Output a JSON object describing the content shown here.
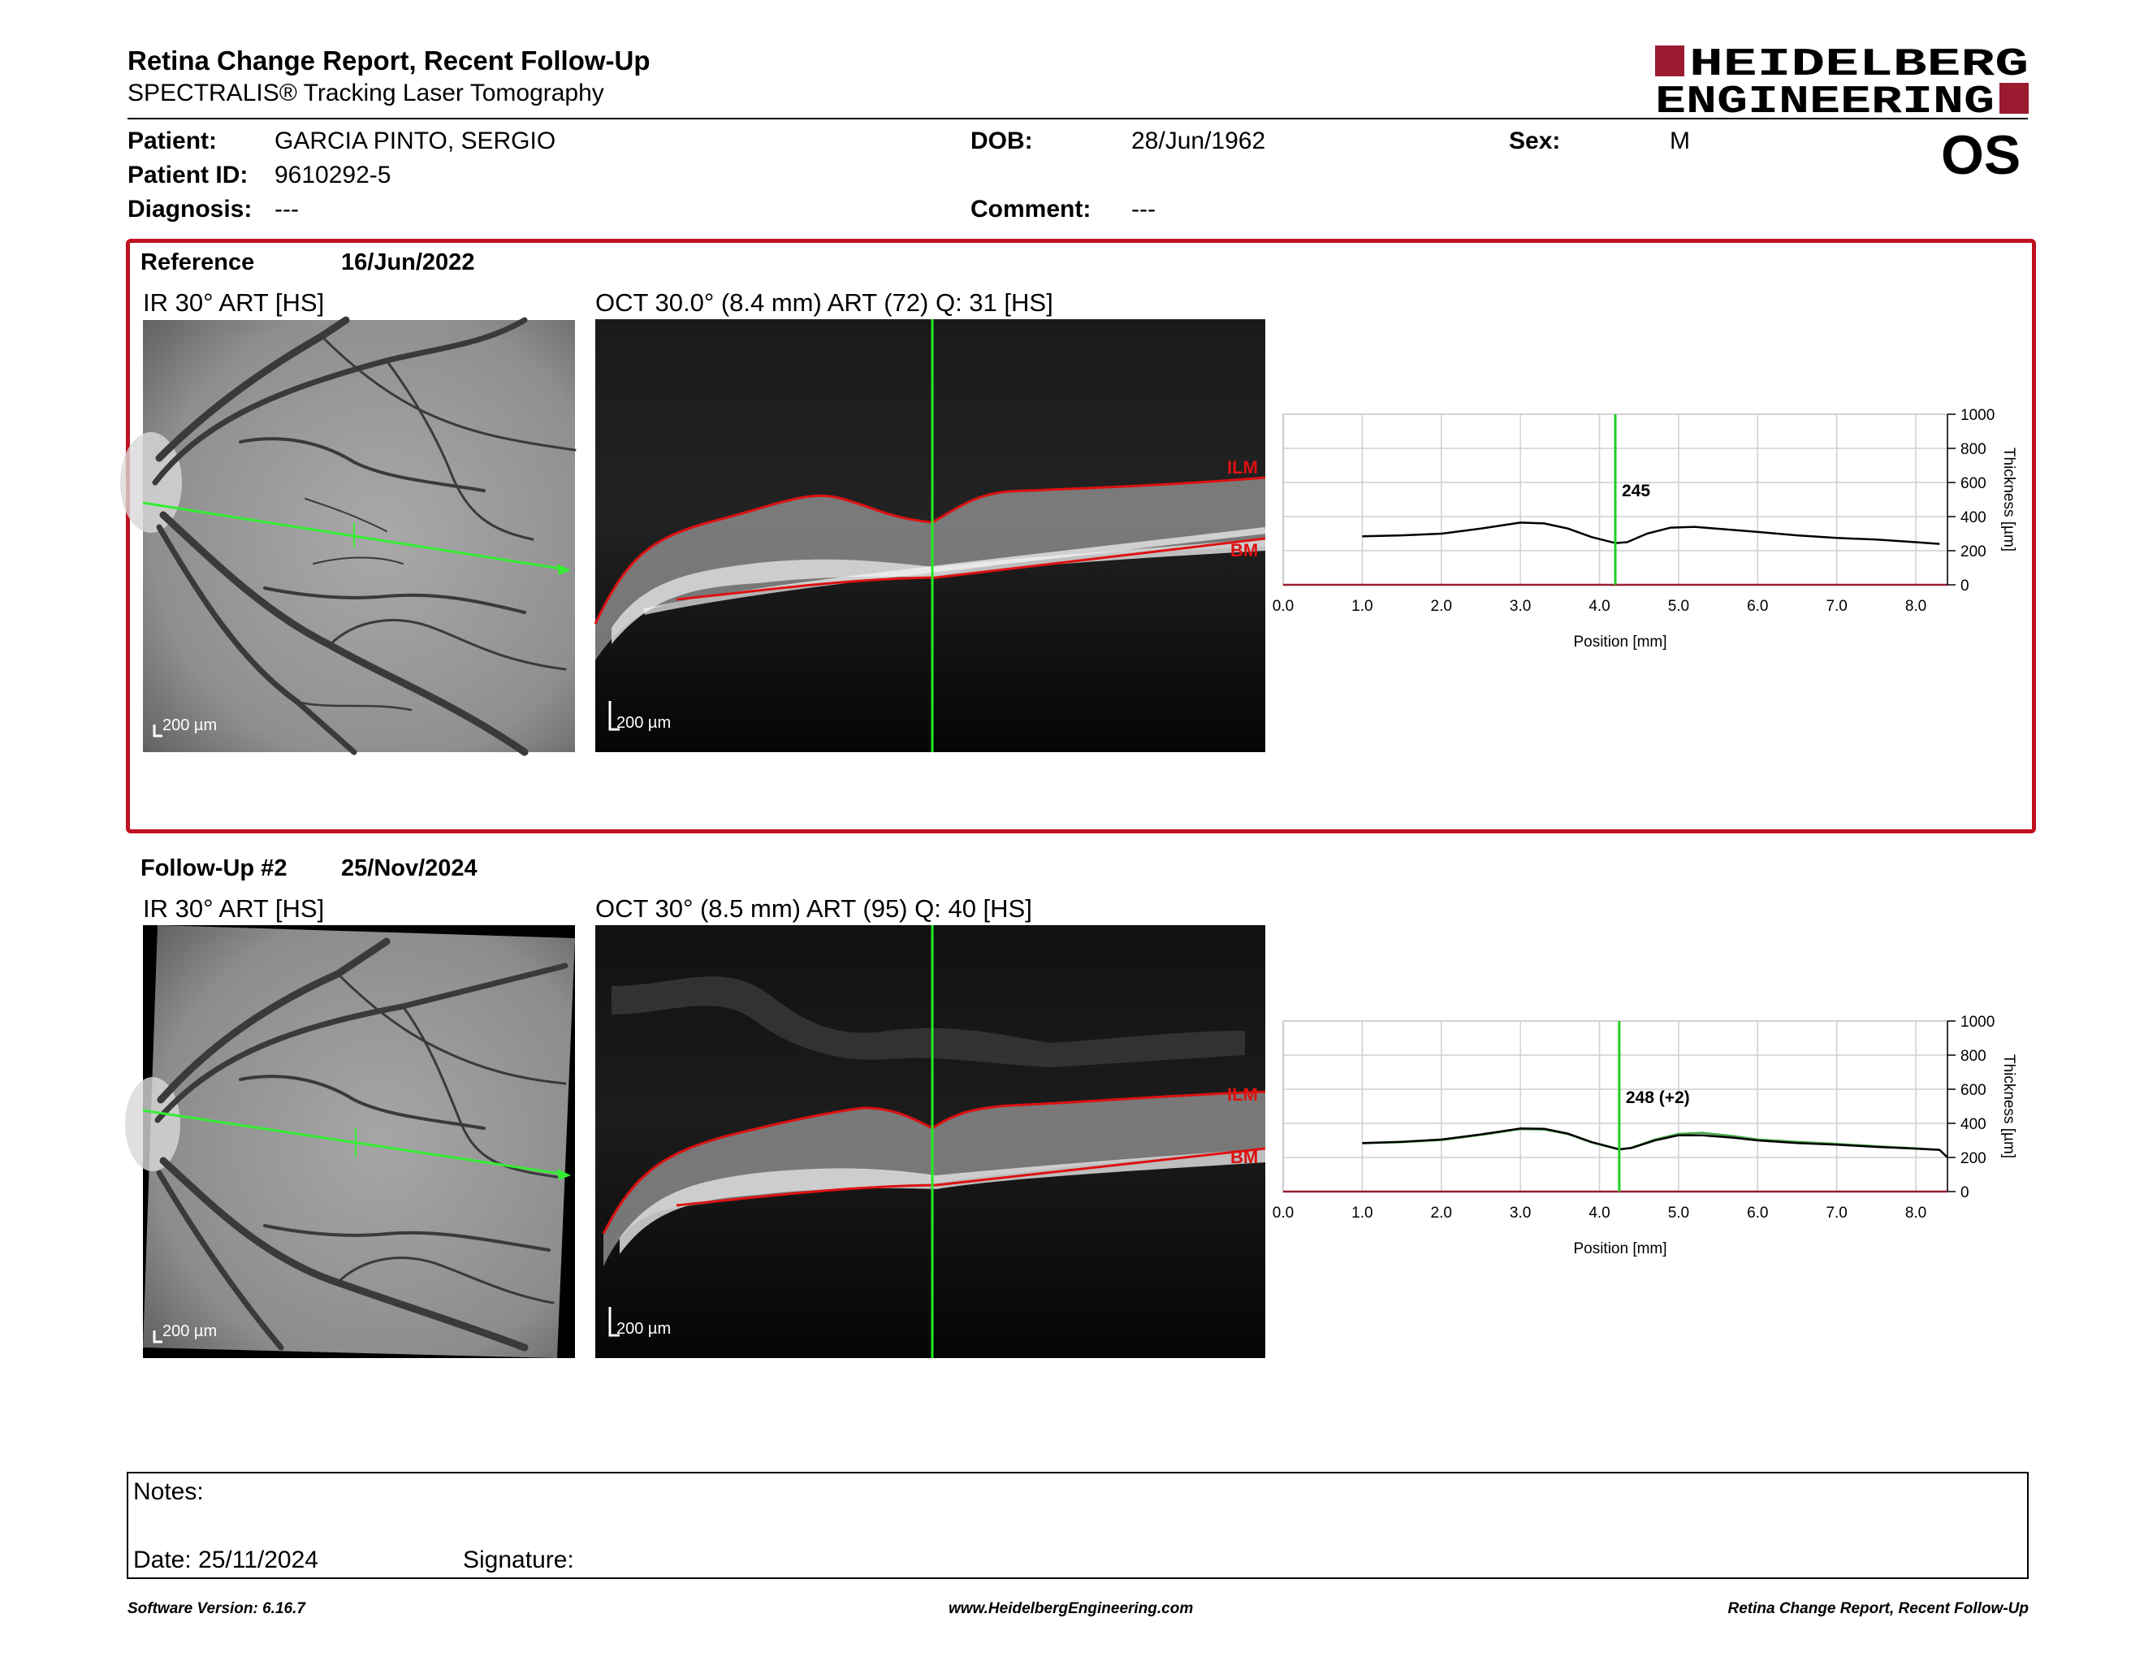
{
  "report": {
    "title": "Retina Change Report, Recent Follow-Up",
    "subtitle": "SPECTRALIS® Tracking Laser Tomography",
    "logo_line1": "HEIDELBERG",
    "logo_line2": "ENGINEERING",
    "brand_color": "#9b1b30"
  },
  "patient": {
    "patient_label": "Patient:",
    "patient_value": "GARCIA PINTO, SERGIO",
    "id_label": "Patient ID:",
    "id_value": "9610292-5",
    "diagnosis_label": "Diagnosis:",
    "diagnosis_value": "---",
    "dob_label": "DOB:",
    "dob_value": "28/Jun/1962",
    "comment_label": "Comment:",
    "comment_value": "---",
    "sex_label": "Sex:",
    "sex_value": "M",
    "eye": "OS"
  },
  "reference": {
    "label": "Reference",
    "date": "16/Jun/2022",
    "ir_title": "IR 30° ART [HS]",
    "oct_title": "OCT 30.0° (8.4 mm) ART (72) Q: 31 [HS]",
    "scale_label": "200 µm",
    "ilm_label": "ILM",
    "bm_label": "BM",
    "highlight_color": "#c0111f"
  },
  "followup": {
    "label": "Follow-Up #2",
    "date": "25/Nov/2024",
    "ir_title": "IR 30° ART [HS]",
    "oct_title": "OCT 30° (8.5 mm) ART (95) Q: 40 [HS]",
    "scale_label": "200 µm",
    "ilm_label": "ILM",
    "bm_label": "BM"
  },
  "chart_data": [
    {
      "type": "line",
      "xlabel": "Position [mm]",
      "ylabel": "Thickness [µm]",
      "xlim": [
        0,
        8.4
      ],
      "ylim": [
        0,
        1000
      ],
      "x_ticks": [
        "0.0",
        "1.0",
        "2.0",
        "3.0",
        "4.0",
        "5.0",
        "6.0",
        "7.0",
        "8.0"
      ],
      "y_ticks": [
        "0",
        "200",
        "400",
        "600",
        "800",
        "1000"
      ],
      "grid": true,
      "cursor": {
        "x": 4.2,
        "label": "245",
        "color": "#22cc22"
      },
      "series": [
        {
          "color": "#000000",
          "x": [
            1.0,
            1.5,
            2.0,
            2.5,
            3.0,
            3.3,
            3.6,
            3.9,
            4.2,
            4.35,
            4.6,
            4.9,
            5.2,
            5.6,
            6.0,
            6.5,
            7.0,
            7.5,
            8.0,
            8.3
          ],
          "y": [
            285,
            290,
            300,
            330,
            365,
            360,
            330,
            280,
            245,
            250,
            300,
            335,
            340,
            325,
            310,
            290,
            275,
            265,
            250,
            240
          ]
        }
      ]
    },
    {
      "type": "line",
      "xlabel": "Position [mm]",
      "ylabel": "Thickness [µm]",
      "xlim": [
        0,
        8.4
      ],
      "ylim": [
        0,
        1000
      ],
      "x_ticks": [
        "0.0",
        "1.0",
        "2.0",
        "3.0",
        "4.0",
        "5.0",
        "6.0",
        "7.0",
        "8.0"
      ],
      "y_ticks": [
        "0",
        "200",
        "400",
        "600",
        "800",
        "1000"
      ],
      "grid": true,
      "cursor": {
        "x": 4.25,
        "label": "248 (+2)",
        "color": "#22cc22"
      },
      "series": [
        {
          "color": "#000000",
          "x": [
            1.0,
            1.5,
            2.0,
            2.5,
            3.0,
            3.3,
            3.6,
            3.9,
            4.25,
            4.4,
            4.7,
            5.0,
            5.3,
            5.7,
            6.0,
            6.5,
            7.0,
            7.5,
            8.0,
            8.3,
            8.4
          ],
          "y": [
            285,
            292,
            305,
            335,
            370,
            368,
            340,
            290,
            248,
            255,
            300,
            330,
            330,
            315,
            300,
            285,
            275,
            262,
            252,
            245,
            200
          ]
        },
        {
          "color": "#44aa44",
          "x": [
            1.0,
            1.5,
            2.0,
            2.5,
            3.0,
            3.3,
            3.6,
            3.9,
            4.25,
            4.4,
            4.7,
            5.0,
            5.3,
            5.7,
            6.0,
            6.5,
            7.0,
            7.5,
            8.0,
            8.3
          ],
          "y": [
            283,
            290,
            302,
            332,
            366,
            364,
            337,
            288,
            246,
            256,
            305,
            338,
            345,
            325,
            305,
            292,
            280,
            266,
            254,
            245
          ]
        }
      ]
    }
  ],
  "notes": {
    "notes_label": "Notes:",
    "date_label": "Date: 25/11/2024",
    "signature_label": "Signature:"
  },
  "footer": {
    "software": "Software Version: 6.16.7",
    "website": "www.HeidelbergEngineering.com",
    "report_name": "Retina Change Report, Recent Follow-Up"
  }
}
